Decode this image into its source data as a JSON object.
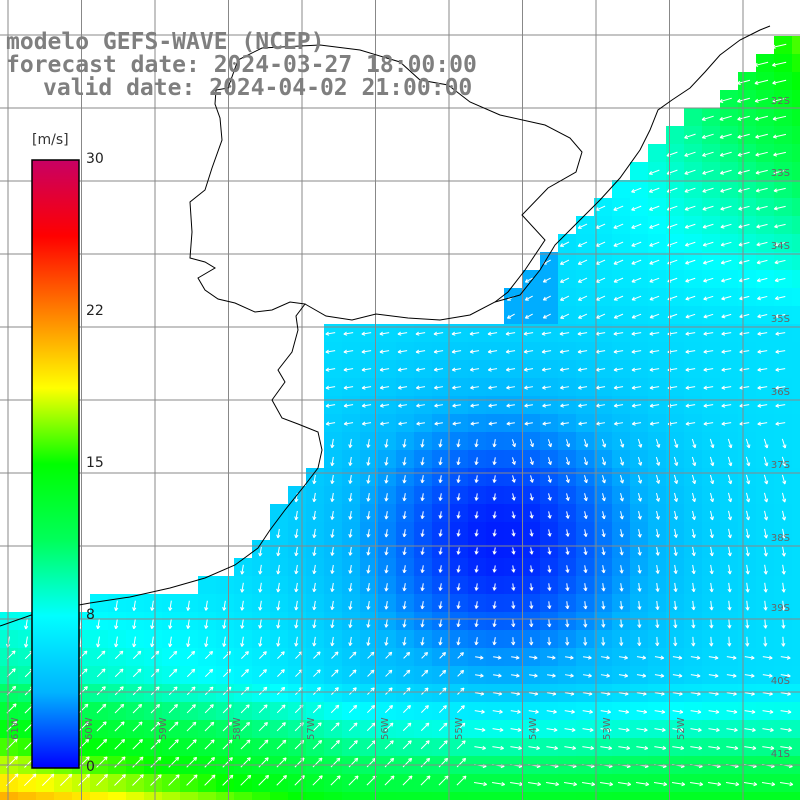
{
  "title": {
    "line1": "modelo GEFS-WAVE (NCEP)",
    "line2": "forecast date: 2024-03-27 18:00:00",
    "line3": "valid date: 2024-04-02 21:00:00"
  },
  "colorbar": {
    "unit": "[m/s]",
    "ticks": [
      "30",
      "22",
      "15",
      "8",
      "0"
    ],
    "tick_values": [
      30,
      22,
      15,
      8,
      0
    ],
    "stops": [
      "#0000ff",
      "#00b4ff",
      "#00ffff",
      "#00ff5a",
      "#00ff00",
      "#ffff00",
      "#ff8000",
      "#ff0000",
      "#c80064"
    ]
  },
  "lat_labels": [
    "32S",
    "33S",
    "34S",
    "35S",
    "36S",
    "37S",
    "38S",
    "39S",
    "40S",
    "41S"
  ],
  "lon_labels": [
    "61W",
    "60W",
    "59W",
    "58W",
    "57W",
    "56W",
    "55W",
    "54W",
    "53W",
    "52W"
  ],
  "colors": {
    "land": "#ffffff",
    "grid": "#888888",
    "coast": "#000000",
    "arrow": "#ffffff",
    "title": "#7f7f7f"
  }
}
